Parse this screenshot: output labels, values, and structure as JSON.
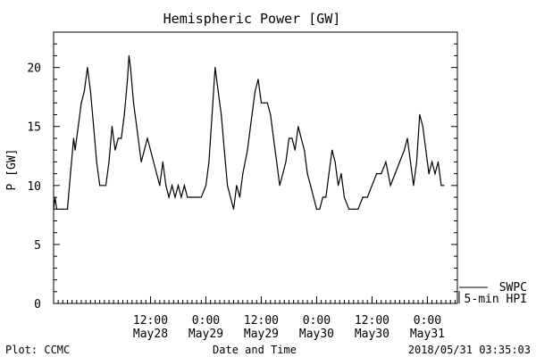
{
  "chart_data": {
    "type": "line",
    "title": "Hemispheric Power [GW]",
    "xlabel": "Date and Time",
    "ylabel": "P [GW]",
    "ylim": [
      0,
      23
    ],
    "xlim": [
      "2018-05-27T15:00",
      "2018-05-31T06:30"
    ],
    "yticks": [
      0,
      5,
      10,
      15,
      20
    ],
    "xticks": [
      {
        "x": "2018-05-28T12:00",
        "time": "12:00",
        "date": "May28"
      },
      {
        "x": "2018-05-29T00:00",
        "time": "0:00",
        "date": "May29"
      },
      {
        "x": "2018-05-29T12:00",
        "time": "12:00",
        "date": "May29"
      },
      {
        "x": "2018-05-30T00:00",
        "time": "0:00",
        "date": "May30"
      },
      {
        "x": "2018-05-30T12:00",
        "time": "12:00",
        "date": "May30"
      },
      {
        "x": "2018-05-31T00:00",
        "time": "0:00",
        "date": "May31"
      }
    ],
    "grid": false,
    "legend": "bottom-right, outside plot",
    "series": [
      {
        "name": "SWPC",
        "values": []
      },
      {
        "name": "5-min HPI",
        "values": [
          [
            "2018-05-27T15:00",
            8
          ],
          [
            "2018-05-27T15:20",
            9
          ],
          [
            "2018-05-27T15:40",
            8
          ],
          [
            "2018-05-27T17:00",
            8
          ],
          [
            "2018-05-27T18:00",
            8
          ],
          [
            "2018-05-27T18:40",
            11
          ],
          [
            "2018-05-27T19:20",
            14
          ],
          [
            "2018-05-27T19:40",
            13
          ],
          [
            "2018-05-27T20:20",
            15
          ],
          [
            "2018-05-27T21:00",
            17
          ],
          [
            "2018-05-27T21:40",
            18
          ],
          [
            "2018-05-27T22:20",
            20
          ],
          [
            "2018-05-27T23:00",
            18
          ],
          [
            "2018-05-27T23:40",
            15
          ],
          [
            "2018-05-28T00:20",
            12
          ],
          [
            "2018-05-28T01:00",
            10
          ],
          [
            "2018-05-28T02:20",
            10
          ],
          [
            "2018-05-28T03:00",
            12
          ],
          [
            "2018-05-28T03:40",
            15
          ],
          [
            "2018-05-28T04:20",
            13
          ],
          [
            "2018-05-28T05:00",
            14
          ],
          [
            "2018-05-28T05:40",
            14
          ],
          [
            "2018-05-28T06:20",
            16
          ],
          [
            "2018-05-28T07:00",
            19
          ],
          [
            "2018-05-28T07:20",
            21
          ],
          [
            "2018-05-28T07:40",
            20
          ],
          [
            "2018-05-28T08:20",
            17
          ],
          [
            "2018-05-28T09:00",
            15
          ],
          [
            "2018-05-28T09:40",
            13
          ],
          [
            "2018-05-28T10:00",
            12
          ],
          [
            "2018-05-28T10:40",
            13
          ],
          [
            "2018-05-28T11:20",
            14
          ],
          [
            "2018-05-28T12:00",
            13
          ],
          [
            "2018-05-28T12:40",
            12
          ],
          [
            "2018-05-28T13:20",
            11
          ],
          [
            "2018-05-28T14:00",
            10
          ],
          [
            "2018-05-28T14:40",
            12
          ],
          [
            "2018-05-28T15:20",
            10
          ],
          [
            "2018-05-28T16:00",
            9
          ],
          [
            "2018-05-28T16:40",
            10
          ],
          [
            "2018-05-28T17:20",
            9
          ],
          [
            "2018-05-28T18:00",
            10
          ],
          [
            "2018-05-28T18:40",
            9
          ],
          [
            "2018-05-28T19:20",
            10
          ],
          [
            "2018-05-28T20:00",
            9
          ],
          [
            "2018-05-28T21:00",
            9
          ],
          [
            "2018-05-28T22:00",
            9
          ],
          [
            "2018-05-28T23:00",
            9
          ],
          [
            "2018-05-29T00:00",
            10
          ],
          [
            "2018-05-29T00:40",
            12
          ],
          [
            "2018-05-29T01:20",
            16
          ],
          [
            "2018-05-29T02:00",
            20
          ],
          [
            "2018-05-29T02:40",
            18
          ],
          [
            "2018-05-29T03:20",
            16
          ],
          [
            "2018-05-29T04:00",
            13
          ],
          [
            "2018-05-29T04:40",
            10
          ],
          [
            "2018-05-29T05:20",
            9
          ],
          [
            "2018-05-29T06:00",
            8
          ],
          [
            "2018-05-29T06:40",
            10
          ],
          [
            "2018-05-29T07:20",
            9
          ],
          [
            "2018-05-29T08:00",
            11
          ],
          [
            "2018-05-29T09:00",
            13
          ],
          [
            "2018-05-29T10:00",
            16
          ],
          [
            "2018-05-29T10:40",
            18
          ],
          [
            "2018-05-29T11:20",
            19
          ],
          [
            "2018-05-29T12:00",
            17
          ],
          [
            "2018-05-29T12:40",
            17
          ],
          [
            "2018-05-29T13:20",
            17
          ],
          [
            "2018-05-29T14:00",
            16
          ],
          [
            "2018-05-29T14:40",
            14
          ],
          [
            "2018-05-29T15:20",
            12
          ],
          [
            "2018-05-29T16:00",
            10
          ],
          [
            "2018-05-29T16:40",
            11
          ],
          [
            "2018-05-29T17:20",
            12
          ],
          [
            "2018-05-29T18:00",
            14
          ],
          [
            "2018-05-29T18:40",
            14
          ],
          [
            "2018-05-29T19:20",
            13
          ],
          [
            "2018-05-29T20:00",
            15
          ],
          [
            "2018-05-29T20:40",
            14
          ],
          [
            "2018-05-29T21:20",
            13
          ],
          [
            "2018-05-29T22:00",
            11
          ],
          [
            "2018-05-29T22:40",
            10
          ],
          [
            "2018-05-29T23:20",
            9
          ],
          [
            "2018-05-30T00:00",
            8
          ],
          [
            "2018-05-30T00:40",
            8
          ],
          [
            "2018-05-30T01:20",
            9
          ],
          [
            "2018-05-30T02:00",
            9
          ],
          [
            "2018-05-30T02:40",
            11
          ],
          [
            "2018-05-30T03:20",
            13
          ],
          [
            "2018-05-30T04:00",
            12
          ],
          [
            "2018-05-30T04:40",
            10
          ],
          [
            "2018-05-30T05:20",
            11
          ],
          [
            "2018-05-30T06:00",
            9
          ],
          [
            "2018-05-30T07:00",
            8
          ],
          [
            "2018-05-30T08:00",
            8
          ],
          [
            "2018-05-30T09:00",
            8
          ],
          [
            "2018-05-30T10:00",
            9
          ],
          [
            "2018-05-30T11:00",
            9
          ],
          [
            "2018-05-30T12:00",
            10
          ],
          [
            "2018-05-30T13:00",
            11
          ],
          [
            "2018-05-30T14:00",
            11
          ],
          [
            "2018-05-30T15:00",
            12
          ],
          [
            "2018-05-30T16:00",
            10
          ],
          [
            "2018-05-30T17:00",
            11
          ],
          [
            "2018-05-30T18:00",
            12
          ],
          [
            "2018-05-30T19:00",
            13
          ],
          [
            "2018-05-30T19:40",
            14
          ],
          [
            "2018-05-30T20:20",
            12
          ],
          [
            "2018-05-30T21:00",
            10
          ],
          [
            "2018-05-30T21:40",
            12
          ],
          [
            "2018-05-30T22:20",
            16
          ],
          [
            "2018-05-30T23:00",
            15
          ],
          [
            "2018-05-30T23:40",
            13
          ],
          [
            "2018-05-31T00:20",
            11
          ],
          [
            "2018-05-31T01:00",
            12
          ],
          [
            "2018-05-31T01:40",
            11
          ],
          [
            "2018-05-31T02:20",
            12
          ],
          [
            "2018-05-31T03:00",
            10
          ],
          [
            "2018-05-31T03:35",
            10
          ]
        ]
      }
    ]
  },
  "footer": {
    "left": "Plot: CCMC",
    "center": "Date and Time",
    "right": "2018/05/31 03:35:03"
  }
}
